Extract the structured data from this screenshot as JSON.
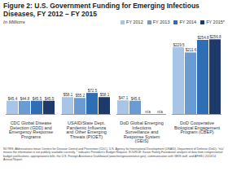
{
  "chart_data": {
    "type": "bar",
    "title": "Figure 2: U.S. Government Funding for Emerging Infectious Diseases, FY 2012 – FY 2015",
    "subtitle": "In Millions",
    "categories": [
      "CDC Global Disease Detection (GDD) and Emergency Response Programs",
      "USAID/State Dept. Pandemic Influenza and Other Emerging Threats (PIOET)",
      "DoD Global Emerging Infections Surveillance and Response System (GEIS)",
      "DoD Cooperative Biological Engagement Program (CBEP)"
    ],
    "series": [
      {
        "name": "FY 2012",
        "color": "#a8c5e8",
        "values": [
          45.4,
          58.1,
          47.1,
          229.5
        ],
        "value_labels": [
          "$45.4",
          "$58.1",
          "$47.1",
          "$229.5"
        ]
      },
      {
        "name": "FY 2013",
        "color": "#6a9bd3",
        "values": [
          44.8,
          55.2,
          45.6,
          211.6
        ],
        "value_labels": [
          "$44.8",
          "$55.2",
          "$45.6",
          "$211.6"
        ]
      },
      {
        "name": "FY 2014",
        "color": "#2f6db5",
        "values": [
          45.5,
          72.5,
          null,
          254.8
        ],
        "value_labels": [
          "$45.5",
          "$72.5",
          "n/a",
          "$254.8"
        ]
      },
      {
        "name": "FY 2015*",
        "color": "#1d3a6b",
        "values": [
          45.5,
          58.1,
          null,
          256.8
        ],
        "value_labels": [
          "$45.5",
          "$58.1",
          "n/a",
          "$256.8"
        ]
      }
    ],
    "ylim": [
      0,
      280
    ],
    "data_labels": true,
    "tick_labels": "x",
    "legend": "top",
    "notes": "NOTES: Abbreviations mean Centers for Disease Control and Prevention (CDC), U.S. Agency for International Development (USAID), Department of Defense (DoD). \"n/a\" means the information is not publicly available currently. * indicates President's Budget Request. SOURCE: Kaiser Family Foundation analysis of data from congressional budget justifications, appropriations bills, the U.S. Foreign Assistance Dashboard (www.foreignassistance.gov), communication with GEIS staff, and AFHSC 2013/14 Annual Report."
  }
}
